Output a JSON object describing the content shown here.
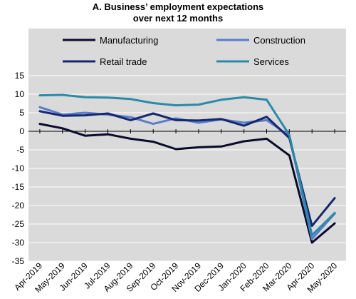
{
  "chart_data": {
    "type": "line",
    "title_line1": "A. Business’ employment expectations",
    "title_line2": "over next 12 months",
    "categories": [
      "Apr-2019",
      "May-2019",
      "Jun-2019",
      "Jul-2019",
      "Aug-2019",
      "Sep-2019",
      "Oct-2019",
      "Nov-2019",
      "Dec-2019",
      "Jan-2020",
      "Feb-2020",
      "Mar-2020",
      "Apr-2020",
      "May-2020"
    ],
    "ylim": [
      -35,
      15
    ],
    "yticks": [
      15,
      10,
      5,
      0,
      -5,
      -10,
      -15,
      -20,
      -25,
      -30,
      -35
    ],
    "grid": "horizontal",
    "legend_position": "top",
    "series": [
      {
        "name": "Manufacturing",
        "color": "#0b0b2b",
        "values": [
          2,
          0.8,
          -1.2,
          -0.8,
          -2.0,
          -2.8,
          -4.8,
          -4.3,
          -4.1,
          -2.7,
          -2.0,
          -6.5,
          -30.0,
          -24.8
        ]
      },
      {
        "name": "Construction",
        "color": "#5b7ccb",
        "values": [
          6.5,
          4.5,
          5.0,
          4.5,
          3.8,
          2.0,
          3.5,
          2.3,
          3.2,
          2.3,
          3.0,
          -1.2,
          -29.0,
          -22.2
        ]
      },
      {
        "name": "Retail trade",
        "color": "#16286e",
        "values": [
          5.4,
          4.2,
          4.3,
          4.8,
          3.0,
          4.8,
          3.0,
          2.9,
          3.3,
          1.5,
          3.9,
          -1.8,
          -25.5,
          -18.0
        ]
      },
      {
        "name": "Services",
        "color": "#2a8aa8",
        "values": [
          9.7,
          9.8,
          9.2,
          9.1,
          8.7,
          7.6,
          7.0,
          7.2,
          8.5,
          9.2,
          8.5,
          -1.0,
          -28.0,
          -22.0
        ]
      }
    ]
  }
}
